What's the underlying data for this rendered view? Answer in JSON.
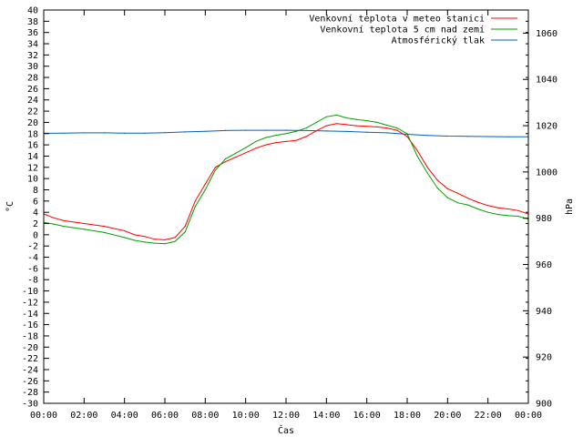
{
  "chart_data": {
    "type": "line",
    "title": "",
    "xlabel": "Čas",
    "ylabel": "°C",
    "y2label": "hPa",
    "x_ticks": [
      "00:00",
      "02:00",
      "04:00",
      "06:00",
      "08:00",
      "10:00",
      "12:00",
      "14:00",
      "16:00",
      "18:00",
      "20:00",
      "22:00",
      "00:00"
    ],
    "xlim_hours": [
      0,
      24
    ],
    "ylim": [
      -30,
      40
    ],
    "y_ticks": [
      40,
      38,
      36,
      34,
      32,
      30,
      28,
      26,
      24,
      22,
      20,
      18,
      16,
      14,
      12,
      10,
      8,
      6,
      4,
      2,
      0,
      -2,
      -4,
      -6,
      -8,
      -10,
      -12,
      -14,
      -16,
      -18,
      -20,
      -22,
      -24,
      -26,
      -28,
      -30
    ],
    "y2lim": [
      900,
      1070
    ],
    "y2_ticks": [
      1060,
      1040,
      1020,
      1000,
      980,
      960,
      940,
      920,
      900
    ],
    "grid": false,
    "legend_position": "top-right",
    "series": [
      {
        "name": "Venkovní teplota v meteo stanici",
        "color": "#ff0000",
        "axis": "left",
        "x": [
          0,
          0.5,
          1,
          2,
          3,
          4,
          4.5,
          5,
          5.5,
          6,
          6.5,
          7,
          7.5,
          8,
          8.5,
          9,
          9.5,
          10,
          10.5,
          11,
          11.5,
          12,
          12.5,
          13,
          13.5,
          14,
          14.5,
          15,
          15.5,
          16,
          16.5,
          17,
          17.5,
          18,
          18.5,
          19,
          19.5,
          20,
          20.5,
          21,
          21.5,
          22,
          22.5,
          23,
          23.5,
          24
        ],
        "y": [
          3.7,
          3.0,
          2.5,
          2.0,
          1.5,
          0.7,
          0.0,
          -0.3,
          -0.8,
          -0.9,
          -0.5,
          1.5,
          6.0,
          9.0,
          12.0,
          13.0,
          13.8,
          14.6,
          15.4,
          16.0,
          16.4,
          16.6,
          16.8,
          17.5,
          18.5,
          19.4,
          19.8,
          19.6,
          19.4,
          19.3,
          19.2,
          19.0,
          18.6,
          17.5,
          15.0,
          12.0,
          9.7,
          8.2,
          7.4,
          6.5,
          5.8,
          5.2,
          4.8,
          4.6,
          4.3,
          3.7
        ]
      },
      {
        "name": "Venkovní teplota 5 cm nad zemí",
        "color": "#00a000",
        "axis": "left",
        "x": [
          0,
          0.5,
          1,
          2,
          3,
          4,
          4.5,
          5,
          5.5,
          6,
          6.5,
          7,
          7.5,
          8,
          8.5,
          9,
          9.5,
          10,
          10.5,
          11,
          11.5,
          12,
          12.5,
          13,
          13.5,
          14,
          14.5,
          15,
          15.5,
          16,
          16.5,
          17,
          17.5,
          18,
          18.5,
          19,
          19.5,
          20,
          20.5,
          21,
          21.5,
          22,
          22.5,
          23,
          23.5,
          24
        ],
        "y": [
          2.2,
          1.9,
          1.5,
          1.0,
          0.4,
          -0.5,
          -1.0,
          -1.3,
          -1.5,
          -1.6,
          -1.2,
          0.5,
          5.0,
          8.0,
          11.5,
          13.5,
          14.5,
          15.5,
          16.6,
          17.3,
          17.7,
          18.0,
          18.4,
          19.0,
          20.0,
          21.0,
          21.3,
          20.8,
          20.5,
          20.3,
          20.0,
          19.5,
          19.0,
          18.0,
          14.0,
          11.0,
          8.3,
          6.6,
          5.7,
          5.3,
          4.6,
          4.0,
          3.6,
          3.4,
          3.3,
          2.8
        ]
      },
      {
        "name": "Atmosférický tlak",
        "color": "#0060c0",
        "axis": "right",
        "x": [
          0,
          1,
          2,
          3,
          4,
          5,
          6,
          7,
          8,
          9,
          10,
          11,
          12,
          13,
          14,
          15,
          16,
          17,
          18,
          19,
          20,
          21,
          22,
          23,
          24
        ],
        "y": [
          1016.7,
          1016.8,
          1016.9,
          1016.9,
          1016.8,
          1016.8,
          1017.0,
          1017.3,
          1017.6,
          1017.9,
          1018.0,
          1018.0,
          1018.0,
          1017.9,
          1017.7,
          1017.5,
          1017.2,
          1016.9,
          1016.3,
          1015.8,
          1015.5,
          1015.4,
          1015.3,
          1015.2,
          1015.2
        ]
      }
    ]
  }
}
